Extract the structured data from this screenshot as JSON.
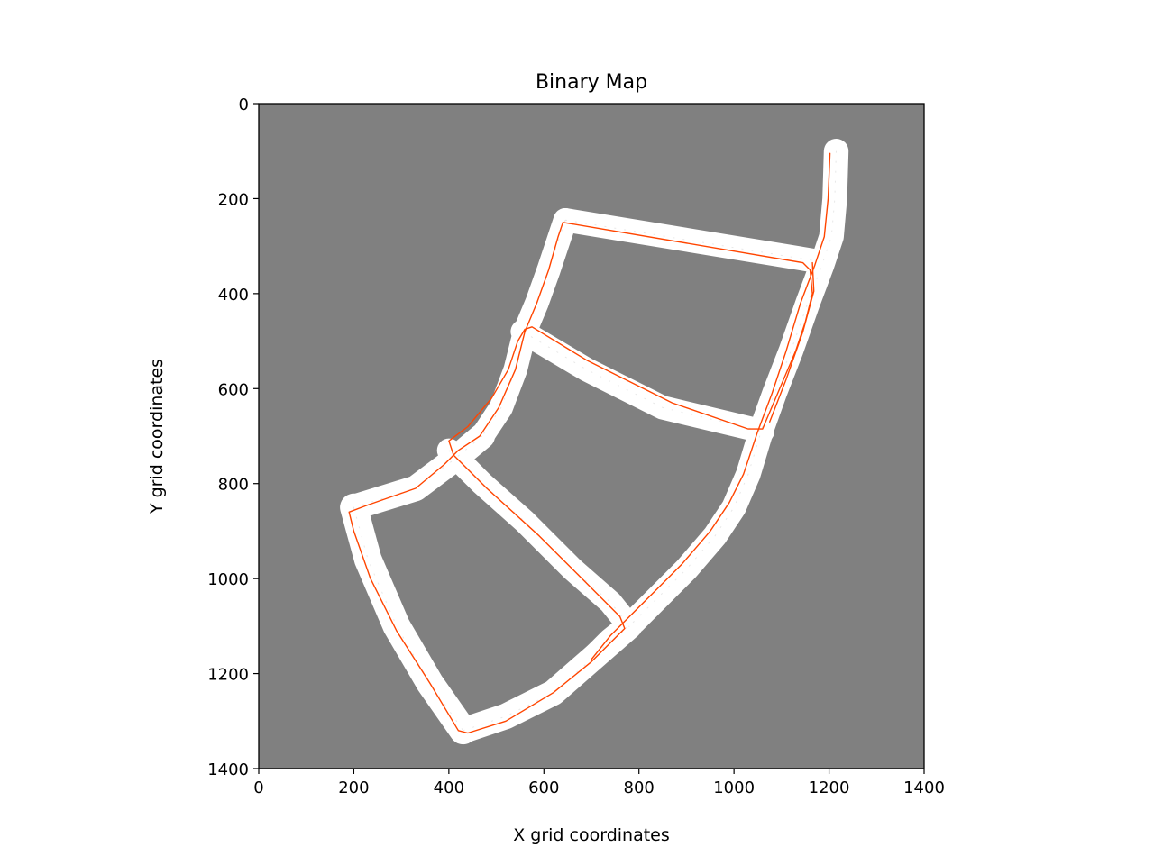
{
  "chart_data": {
    "type": "heatmap",
    "title": "Binary Map",
    "xlabel": "X grid coordinates",
    "ylabel": "Y grid coordinates",
    "xlim": [
      0,
      1400
    ],
    "ylim": [
      1400,
      0
    ],
    "x_ticks": [
      0,
      200,
      400,
      600,
      800,
      1000,
      1200,
      1400
    ],
    "y_ticks": [
      0,
      200,
      400,
      600,
      800,
      1000,
      1200,
      1400
    ],
    "x_tick_labels": [
      "0",
      "200",
      "400",
      "600",
      "800",
      "1000",
      "1200",
      "1400"
    ],
    "y_tick_labels": [
      "0",
      "200",
      "400",
      "600",
      "800",
      "1000",
      "1200",
      "1400"
    ],
    "grid": false,
    "colors": {
      "unknown": "#808080",
      "free": "#ffffff",
      "path": "#ff4500",
      "speckle": "#404040"
    },
    "free_space_corridors": [
      {
        "points": [
          [
            1215,
            100
          ],
          [
            1212,
            200
          ],
          [
            1205,
            280
          ],
          [
            1185,
            340
          ],
          [
            1155,
            420
          ],
          [
            1120,
            520
          ],
          [
            1085,
            610
          ],
          [
            1060,
            680
          ],
          [
            1030,
            780
          ],
          [
            1000,
            850
          ],
          [
            960,
            910
          ],
          [
            900,
            980
          ],
          [
            840,
            1040
          ],
          [
            790,
            1090
          ],
          [
            740,
            1130
          ],
          [
            700,
            1170
          ]
        ],
        "width": 52
      },
      {
        "points": [
          [
            645,
            245
          ],
          [
            1165,
            330
          ]
        ],
        "width": 50
      },
      {
        "points": [
          [
            645,
            245
          ],
          [
            630,
            290
          ],
          [
            610,
            350
          ],
          [
            585,
            420
          ],
          [
            560,
            480
          ],
          [
            540,
            560
          ],
          [
            510,
            640
          ],
          [
            470,
            700
          ]
        ],
        "width": 50
      },
      {
        "points": [
          [
            555,
            480
          ],
          [
            690,
            560
          ],
          [
            850,
            640
          ],
          [
            1060,
            690
          ]
        ],
        "width": 50
      },
      {
        "points": [
          [
            470,
            700
          ],
          [
            410,
            750
          ],
          [
            330,
            810
          ],
          [
            200,
            850
          ]
        ],
        "width": 54
      },
      {
        "points": [
          [
            400,
            730
          ],
          [
            470,
            800
          ],
          [
            560,
            880
          ],
          [
            660,
            980
          ],
          [
            740,
            1050
          ],
          [
            780,
            1100
          ]
        ],
        "width": 50
      },
      {
        "points": [
          [
            200,
            850
          ],
          [
            230,
            960
          ],
          [
            290,
            1100
          ],
          [
            360,
            1220
          ],
          [
            430,
            1320
          ]
        ],
        "width": 58
      },
      {
        "points": [
          [
            430,
            1320
          ],
          [
            520,
            1290
          ],
          [
            620,
            1240
          ],
          [
            700,
            1170
          ],
          [
            780,
            1100
          ]
        ],
        "width": 54
      }
    ],
    "paths": [
      {
        "points": [
          [
            1202,
            105
          ],
          [
            1198,
            200
          ],
          [
            1190,
            280
          ],
          [
            1170,
            340
          ],
          [
            1140,
            420
          ],
          [
            1110,
            520
          ],
          [
            1080,
            610
          ],
          [
            1050,
            690
          ],
          [
            1020,
            780
          ],
          [
            990,
            840
          ],
          [
            950,
            900
          ],
          [
            890,
            970
          ],
          [
            830,
            1030
          ],
          [
            780,
            1080
          ],
          [
            740,
            1120
          ],
          [
            700,
            1170
          ]
        ]
      },
      {
        "points": [
          [
            1165,
            335
          ],
          [
            1168,
            395
          ],
          [
            1145,
            480
          ],
          [
            1110,
            580
          ],
          [
            1075,
            670
          ]
        ]
      },
      {
        "points": [
          [
            1145,
            335
          ],
          [
            640,
            250
          ],
          [
            630,
            280
          ],
          [
            610,
            350
          ],
          [
            585,
            420
          ],
          [
            560,
            480
          ],
          [
            540,
            560
          ],
          [
            505,
            640
          ],
          [
            465,
            700
          ],
          [
            420,
            730
          ],
          [
            390,
            760
          ],
          [
            330,
            810
          ],
          [
            230,
            845
          ],
          [
            190,
            860
          ],
          [
            200,
            900
          ],
          [
            235,
            1000
          ],
          [
            290,
            1110
          ],
          [
            360,
            1220
          ],
          [
            420,
            1320
          ],
          [
            440,
            1325
          ],
          [
            520,
            1300
          ],
          [
            620,
            1240
          ],
          [
            700,
            1175
          ],
          [
            770,
            1105
          ],
          [
            760,
            1080
          ],
          [
            680,
            1000
          ],
          [
            590,
            910
          ],
          [
            480,
            810
          ],
          [
            410,
            740
          ],
          [
            400,
            710
          ],
          [
            440,
            680
          ],
          [
            490,
            620
          ],
          [
            525,
            560
          ],
          [
            545,
            500
          ],
          [
            560,
            475
          ],
          [
            575,
            470
          ],
          [
            690,
            540
          ],
          [
            870,
            630
          ],
          [
            1030,
            685
          ],
          [
            1060,
            685
          ],
          [
            1130,
            520
          ],
          [
            1150,
            460
          ],
          [
            1165,
            400
          ],
          [
            1160,
            350
          ],
          [
            1145,
            335
          ]
        ]
      }
    ]
  }
}
